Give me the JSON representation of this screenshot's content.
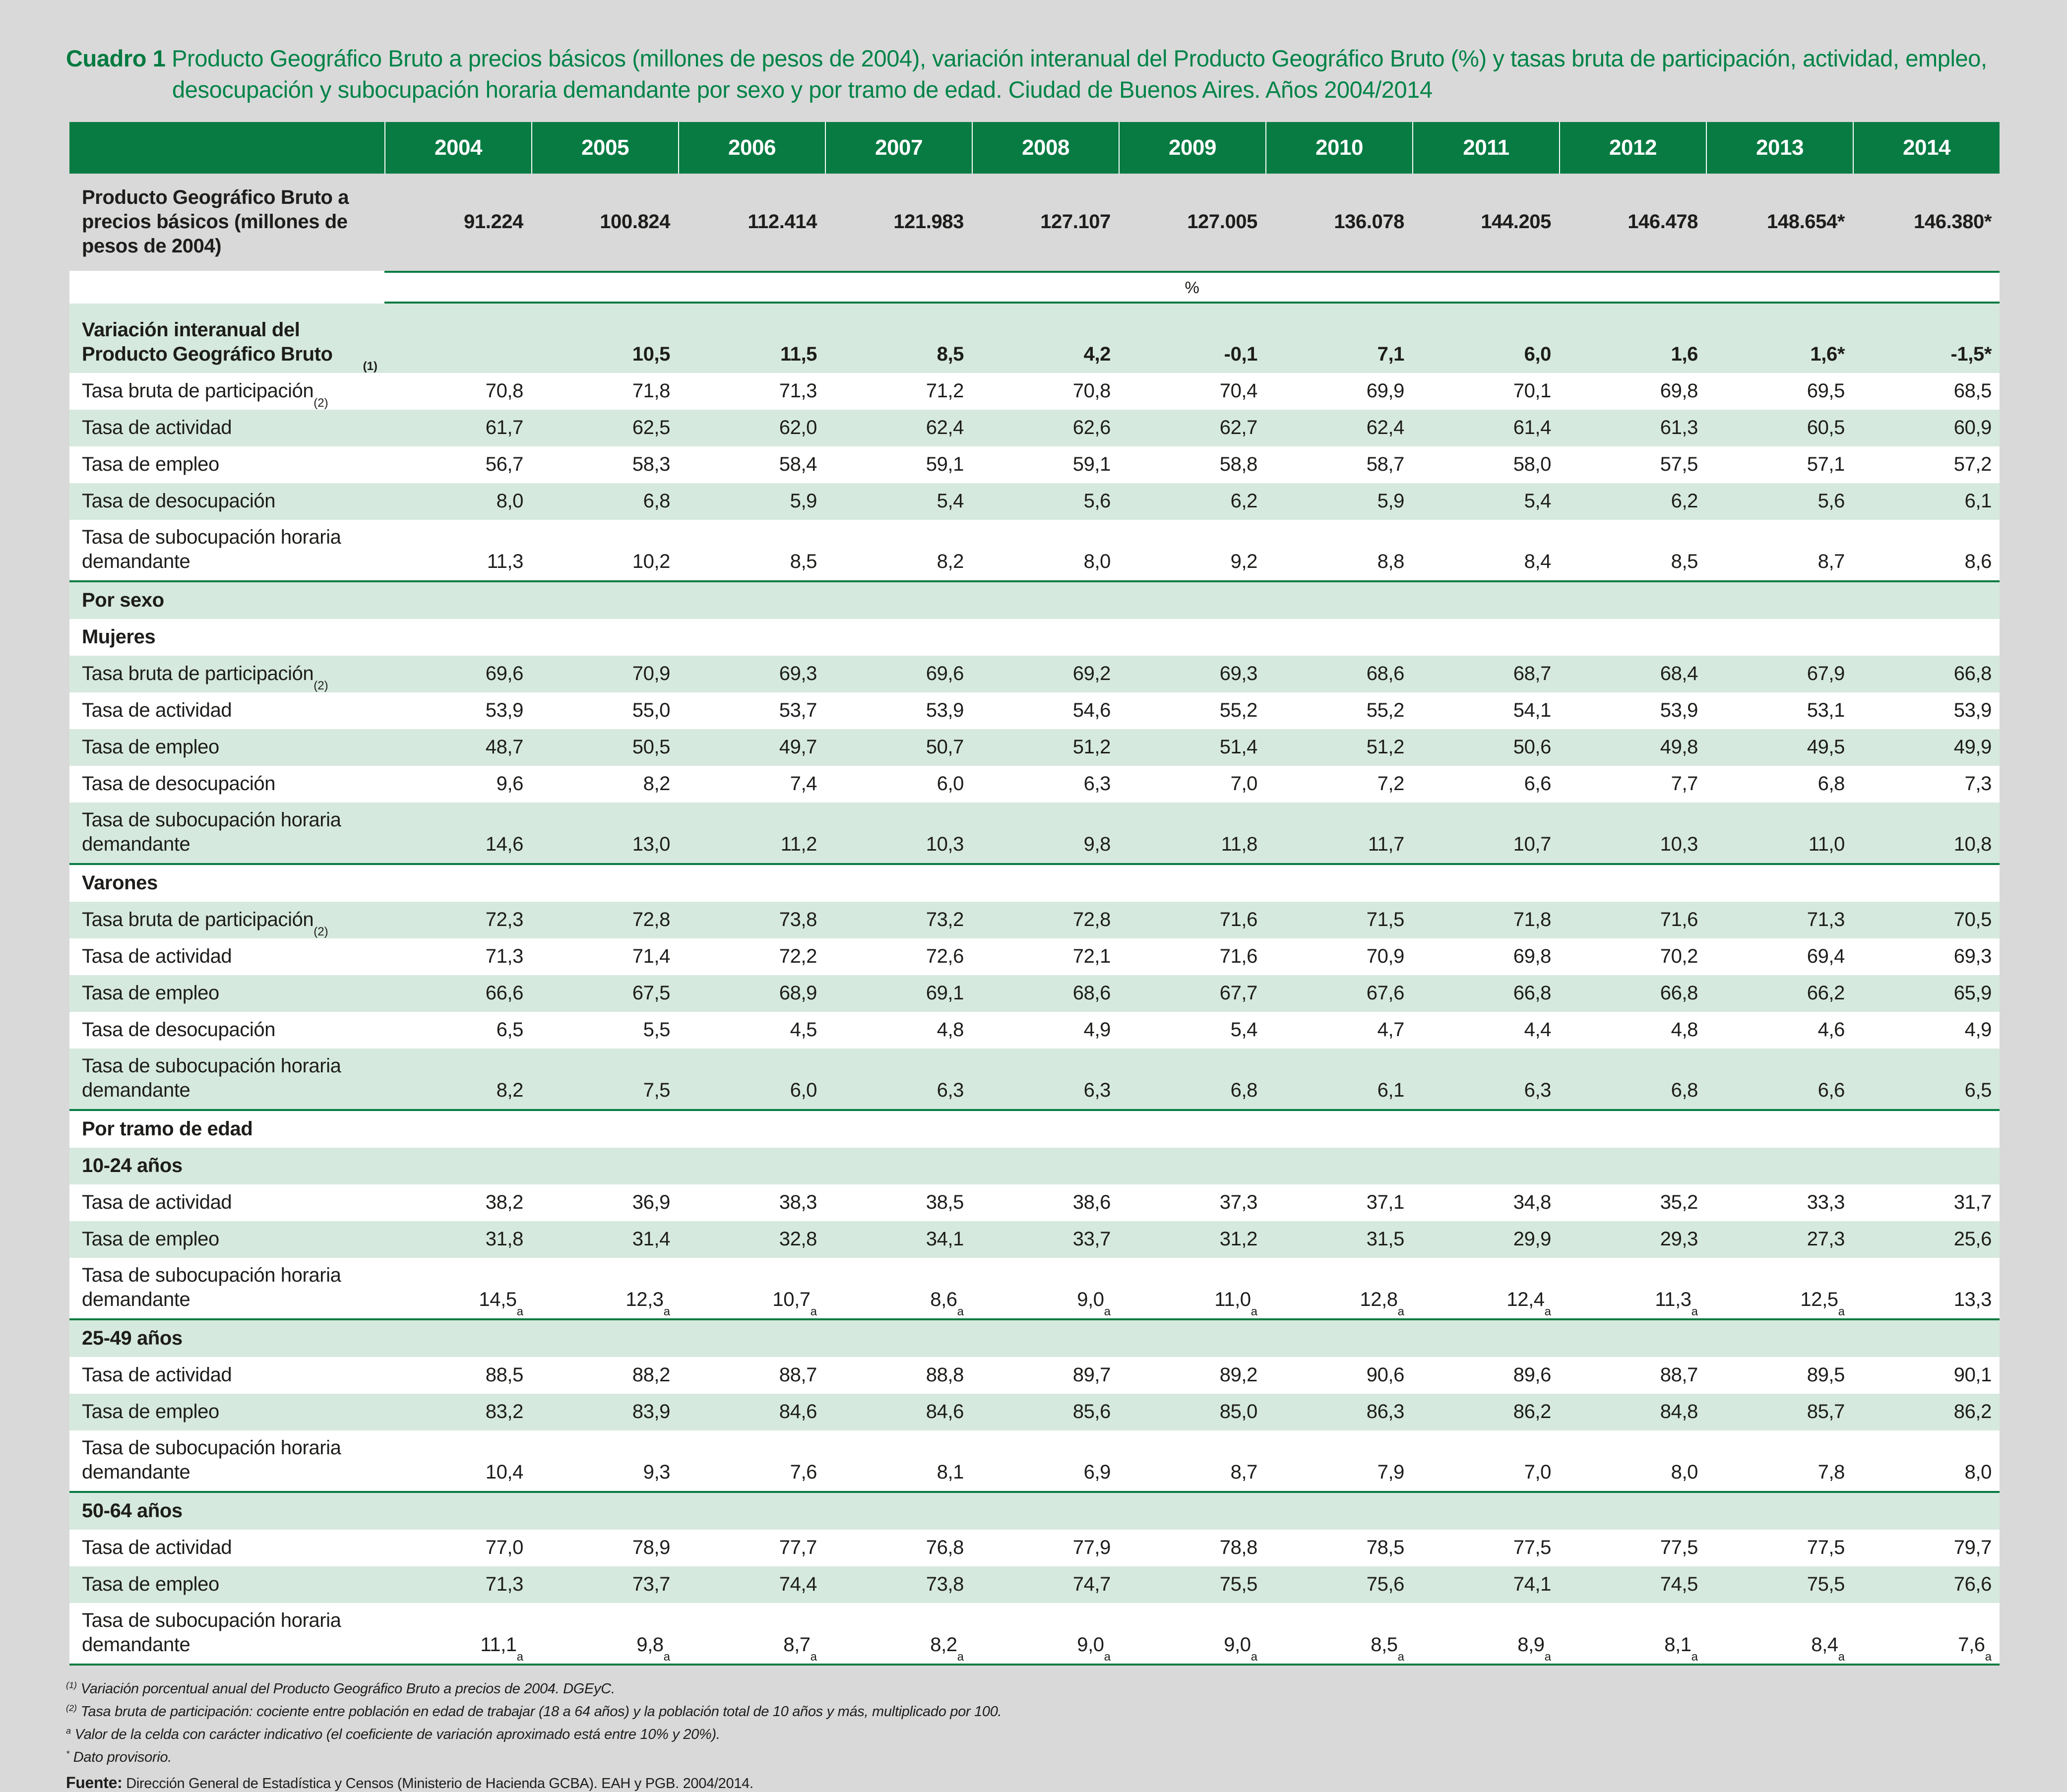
{
  "title": {
    "label": "Cuadro 1",
    "text": "Producto Geográfico Bruto a precios básicos (millones de pesos de 2004), variación interanual del Producto Geográfico Bruto (%) y tasas bruta de participación, actividad, empleo, desocupación y subocupación horaria demandante por sexo y por tramo de edad. Ciudad de Buenos Aires. Años 2004/2014"
  },
  "colors": {
    "header_green": "#077b42",
    "row_light_green": "#d6e9de",
    "title_green": "#008348",
    "page_background": "#d9d9d9",
    "text": "#1d1d1b"
  },
  "table": {
    "years": [
      "2004",
      "2005",
      "2006",
      "2007",
      "2008",
      "2009",
      "2010",
      "2011",
      "2012",
      "2013",
      "2014"
    ],
    "unit_band": "%",
    "rows": [
      {
        "name": "row-pgb",
        "kind": "data",
        "shade": "page",
        "bold": true,
        "vcenter": true,
        "label": "Producto Geográfico Bruto a precios básicos (millones de pesos de 2004)",
        "values": [
          "91.224",
          "100.824",
          "112.414",
          "121.983",
          "127.107",
          "127.005",
          "136.078",
          "144.205",
          "146.478",
          "148.654*",
          "146.380*"
        ]
      },
      {
        "name": "row-unit-band",
        "kind": "unit",
        "shade": "white",
        "label": "",
        "unit": "%"
      },
      {
        "name": "row-variacion-interanual",
        "kind": "data",
        "shade": "green",
        "bold": true,
        "label": "Variación interanual del Producto Geográfico Bruto^(1)",
        "values": [
          "",
          "10,5",
          "11,5",
          "8,5",
          "4,2",
          "-0,1",
          "7,1",
          "6,0",
          "1,6",
          "1,6*",
          "-1,5*"
        ]
      },
      {
        "name": "row-tasa-bruta-participacion",
        "kind": "data",
        "shade": "white",
        "label": "Tasa bruta de participación^(2)",
        "values": [
          "70,8",
          "71,8",
          "71,3",
          "71,2",
          "70,8",
          "70,4",
          "69,9",
          "70,1",
          "69,8",
          "69,5",
          "68,5"
        ]
      },
      {
        "name": "row-tasa-actividad",
        "kind": "data",
        "shade": "green",
        "label": "Tasa de actividad",
        "values": [
          "61,7",
          "62,5",
          "62,0",
          "62,4",
          "62,6",
          "62,7",
          "62,4",
          "61,4",
          "61,3",
          "60,5",
          "60,9"
        ]
      },
      {
        "name": "row-tasa-empleo",
        "kind": "data",
        "shade": "white",
        "label": "Tasa de empleo",
        "values": [
          "56,7",
          "58,3",
          "58,4",
          "59,1",
          "59,1",
          "58,8",
          "58,7",
          "58,0",
          "57,5",
          "57,1",
          "57,2"
        ]
      },
      {
        "name": "row-tasa-desocupacion",
        "kind": "data",
        "shade": "green",
        "label": "Tasa de desocupación",
        "values": [
          "8,0",
          "6,8",
          "5,9",
          "5,4",
          "5,6",
          "6,2",
          "5,9",
          "5,4",
          "6,2",
          "5,6",
          "6,1"
        ]
      },
      {
        "name": "row-tasa-subocupacion",
        "kind": "data",
        "shade": "white",
        "label": "Tasa de subocupación horaria demandante",
        "values": [
          "11,3",
          "10,2",
          "8,5",
          "8,2",
          "8,0",
          "9,2",
          "8,8",
          "8,4",
          "8,5",
          "8,7",
          "8,6"
        ]
      },
      {
        "name": "section-por-sexo",
        "kind": "section",
        "shade": "green",
        "bold": true,
        "sep": true,
        "label": "Por sexo"
      },
      {
        "name": "section-mujeres",
        "kind": "section",
        "shade": "white",
        "bold": true,
        "label": "Mujeres"
      },
      {
        "name": "row-mujeres-tasa-bruta-participacion",
        "kind": "data",
        "shade": "green",
        "label": "Tasa bruta de participación^(2)",
        "values": [
          "69,6",
          "70,9",
          "69,3",
          "69,6",
          "69,2",
          "69,3",
          "68,6",
          "68,7",
          "68,4",
          "67,9",
          "66,8"
        ]
      },
      {
        "name": "row-mujeres-tasa-actividad",
        "kind": "data",
        "shade": "white",
        "label": "Tasa de actividad",
        "values": [
          "53,9",
          "55,0",
          "53,7",
          "53,9",
          "54,6",
          "55,2",
          "55,2",
          "54,1",
          "53,9",
          "53,1",
          "53,9"
        ]
      },
      {
        "name": "row-mujeres-tasa-empleo",
        "kind": "data",
        "shade": "green",
        "label": "Tasa de empleo",
        "values": [
          "48,7",
          "50,5",
          "49,7",
          "50,7",
          "51,2",
          "51,4",
          "51,2",
          "50,6",
          "49,8",
          "49,5",
          "49,9"
        ]
      },
      {
        "name": "row-mujeres-tasa-desocupacion",
        "kind": "data",
        "shade": "white",
        "label": "Tasa de desocupación",
        "values": [
          "9,6",
          "8,2",
          "7,4",
          "6,0",
          "6,3",
          "7,0",
          "7,2",
          "6,6",
          "7,7",
          "6,8",
          "7,3"
        ]
      },
      {
        "name": "row-mujeres-tasa-subocupacion",
        "kind": "data",
        "shade": "green",
        "label": "Tasa de subocupación horaria demandante",
        "values": [
          "14,6",
          "13,0",
          "11,2",
          "10,3",
          "9,8",
          "11,8",
          "11,7",
          "10,7",
          "10,3",
          "11,0",
          "10,8"
        ]
      },
      {
        "name": "section-varones",
        "kind": "section",
        "shade": "white",
        "bold": true,
        "sep": true,
        "label": "Varones"
      },
      {
        "name": "row-varones-tasa-bruta-participacion",
        "kind": "data",
        "shade": "green",
        "label": "Tasa bruta de participación^(2)",
        "values": [
          "72,3",
          "72,8",
          "73,8",
          "73,2",
          "72,8",
          "71,6",
          "71,5",
          "71,8",
          "71,6",
          "71,3",
          "70,5"
        ]
      },
      {
        "name": "row-varones-tasa-actividad",
        "kind": "data",
        "shade": "white",
        "label": "Tasa de actividad",
        "values": [
          "71,3",
          "71,4",
          "72,2",
          "72,6",
          "72,1",
          "71,6",
          "70,9",
          "69,8",
          "70,2",
          "69,4",
          "69,3"
        ]
      },
      {
        "name": "row-varones-tasa-empleo",
        "kind": "data",
        "shade": "green",
        "label": "Tasa de empleo",
        "values": [
          "66,6",
          "67,5",
          "68,9",
          "69,1",
          "68,6",
          "67,7",
          "67,6",
          "66,8",
          "66,8",
          "66,2",
          "65,9"
        ]
      },
      {
        "name": "row-varones-tasa-desocupacion",
        "kind": "data",
        "shade": "white",
        "label": "Tasa de desocupación",
        "values": [
          "6,5",
          "5,5",
          "4,5",
          "4,8",
          "4,9",
          "5,4",
          "4,7",
          "4,4",
          "4,8",
          "4,6",
          "4,9"
        ]
      },
      {
        "name": "row-varones-tasa-subocupacion",
        "kind": "data",
        "shade": "green",
        "label": "Tasa de subocupación horaria demandante",
        "values": [
          "8,2",
          "7,5",
          "6,0",
          "6,3",
          "6,3",
          "6,8",
          "6,1",
          "6,3",
          "6,8",
          "6,6",
          "6,5"
        ]
      },
      {
        "name": "section-por-tramo-de-edad",
        "kind": "section",
        "shade": "white",
        "bold": true,
        "sep": true,
        "label": "Por tramo de edad"
      },
      {
        "name": "section-10-24-anos",
        "kind": "section",
        "shade": "green",
        "bold": true,
        "label": "10-24 años"
      },
      {
        "name": "row-10-24-tasa-actividad",
        "kind": "data",
        "shade": "white",
        "label": "Tasa de actividad",
        "values": [
          "38,2",
          "36,9",
          "38,3",
          "38,5",
          "38,6",
          "37,3",
          "37,1",
          "34,8",
          "35,2",
          "33,3",
          "31,7"
        ]
      },
      {
        "name": "row-10-24-tasa-empleo",
        "kind": "data",
        "shade": "green",
        "label": "Tasa de empleo",
        "values": [
          "31,8",
          "31,4",
          "32,8",
          "34,1",
          "33,7",
          "31,2",
          "31,5",
          "29,9",
          "29,3",
          "27,3",
          "25,6"
        ]
      },
      {
        "name": "row-10-24-tasa-subocupacion",
        "kind": "data",
        "shade": "white",
        "label": "Tasa de subocupación horaria demandante",
        "values": [
          "14,5^a",
          "12,3^a",
          "10,7^a",
          "8,6^a",
          "9,0^a",
          "11,0^a",
          "12,8^a",
          "12,4^a",
          "11,3^a",
          "12,5^a",
          "13,3"
        ]
      },
      {
        "name": "section-25-49-anos",
        "kind": "section",
        "shade": "green",
        "bold": true,
        "sep": true,
        "label": "25-49 años"
      },
      {
        "name": "row-25-49-tasa-actividad",
        "kind": "data",
        "shade": "white",
        "label": "Tasa de actividad",
        "values": [
          "88,5",
          "88,2",
          "88,7",
          "88,8",
          "89,7",
          "89,2",
          "90,6",
          "89,6",
          "88,7",
          "89,5",
          "90,1"
        ]
      },
      {
        "name": "row-25-49-tasa-empleo",
        "kind": "data",
        "shade": "green",
        "label": "Tasa de empleo",
        "values": [
          "83,2",
          "83,9",
          "84,6",
          "84,6",
          "85,6",
          "85,0",
          "86,3",
          "86,2",
          "84,8",
          "85,7",
          "86,2"
        ]
      },
      {
        "name": "row-25-49-tasa-subocupacion",
        "kind": "data",
        "shade": "white",
        "label": "Tasa de subocupación horaria demandante",
        "values": [
          "10,4",
          "9,3",
          "7,6",
          "8,1",
          "6,9",
          "8,7",
          "7,9",
          "7,0",
          "8,0",
          "7,8",
          "8,0"
        ]
      },
      {
        "name": "section-50-64-anos",
        "kind": "section",
        "shade": "green",
        "bold": true,
        "sep": true,
        "label": "50-64 años"
      },
      {
        "name": "row-50-64-tasa-actividad",
        "kind": "data",
        "shade": "white",
        "label": "Tasa de actividad",
        "values": [
          "77,0",
          "78,9",
          "77,7",
          "76,8",
          "77,9",
          "78,8",
          "78,5",
          "77,5",
          "77,5",
          "77,5",
          "79,7"
        ]
      },
      {
        "name": "row-50-64-tasa-empleo",
        "kind": "data",
        "shade": "green",
        "label": "Tasa de empleo",
        "values": [
          "71,3",
          "73,7",
          "74,4",
          "73,8",
          "74,7",
          "75,5",
          "75,6",
          "74,1",
          "74,5",
          "75,5",
          "76,6"
        ]
      },
      {
        "name": "row-50-64-tasa-subocupacion",
        "kind": "data",
        "shade": "white",
        "label": "Tasa de subocupación horaria demandante",
        "values": [
          "11,1^a",
          "9,8^a",
          "8,7^a",
          "8,2^a",
          "9,0^a",
          "9,0^a",
          "8,5^a",
          "8,9^a",
          "8,1^a",
          "8,4^a",
          "7,6^a"
        ]
      }
    ]
  },
  "footnotes": [
    {
      "sup": "(1)",
      "text": "Variación porcentual anual del Producto Geográfico Bruto a precios de 2004. DGEyC."
    },
    {
      "sup": "(2)",
      "text": "Tasa bruta de participación: cociente entre población en edad de trabajar (18 a 64 años) y la población total de 10 años y más, multiplicado por 100."
    },
    {
      "sup": "a",
      "text": "Valor de la celda con carácter indicativo (el coeficiente de variación aproximado está entre 10% y 20%)."
    },
    {
      "sup": "*",
      "text": "Dato provisorio."
    }
  ],
  "source": {
    "label": "Fuente:",
    "text": "Dirección General de Estadística y Censos (Ministerio de Hacienda GCBA). EAH y PGB. 2004/2014."
  }
}
